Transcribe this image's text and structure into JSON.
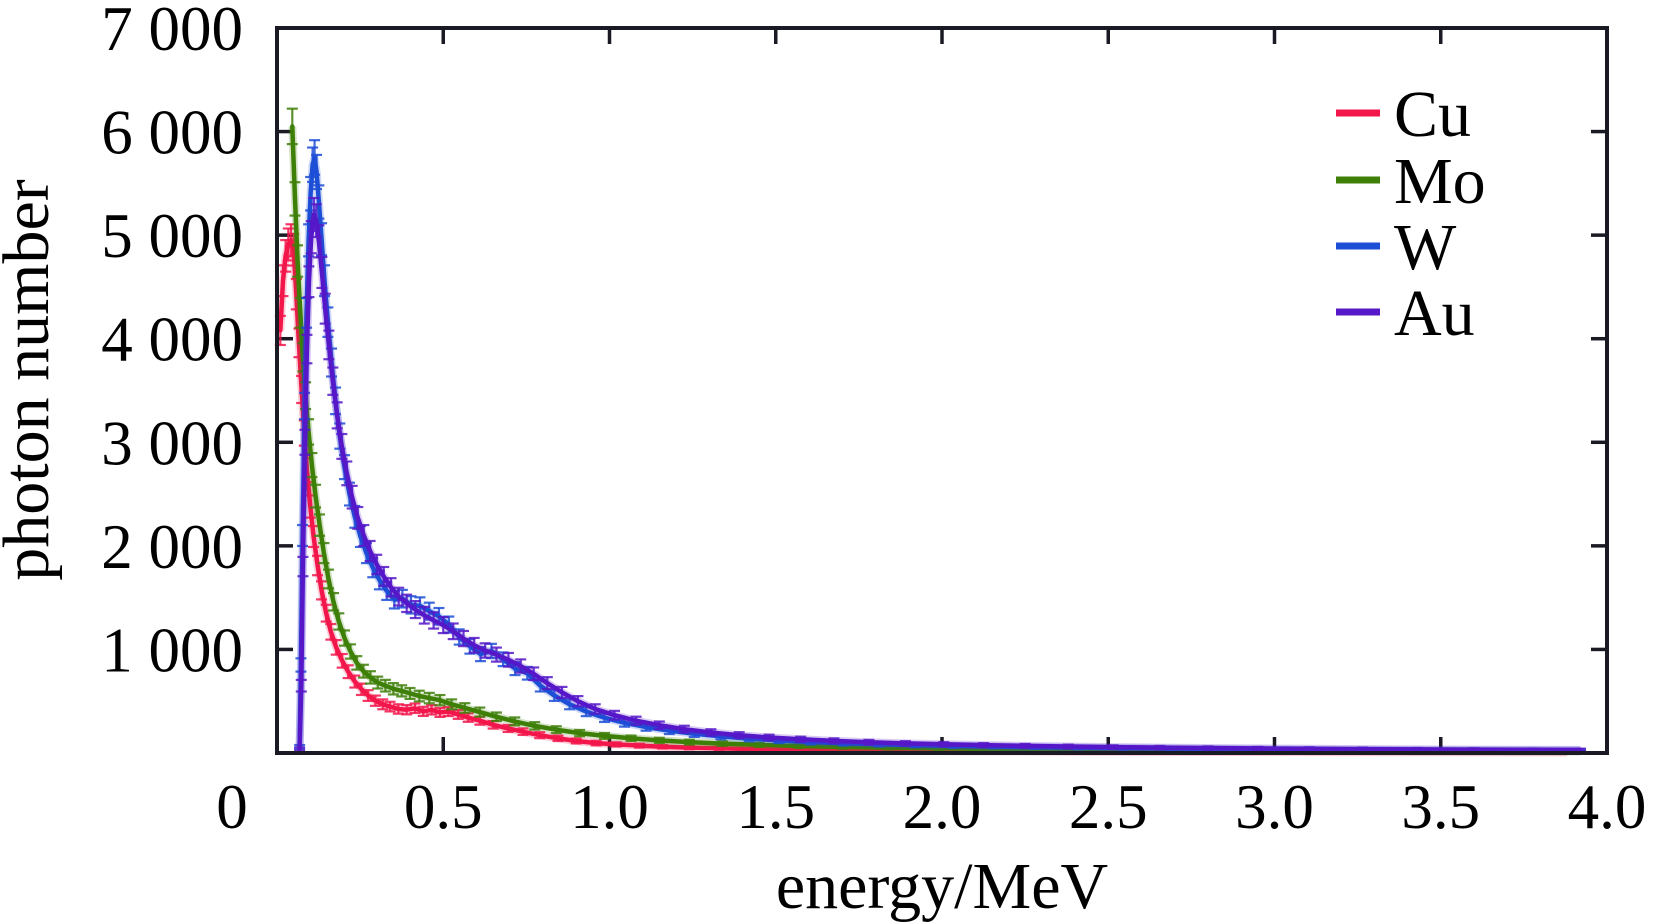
{
  "chart_data": {
    "type": "line",
    "title": "",
    "xlabel": "energy/MeV",
    "ylabel": "photon number",
    "xlim": [
      0,
      4.0
    ],
    "ylim": [
      0,
      7000
    ],
    "grid": false,
    "legend_position": "top-right",
    "frame": "full-box-with-mirrored-inward-ticks",
    "error_bar_factor": 2.2,
    "x_tick_values": [
      0,
      0.5,
      1.0,
      1.5,
      2.0,
      2.5,
      3.0,
      3.5,
      4.0
    ],
    "x_tick_labels": [
      "0",
      "0.5",
      "1.0",
      "1.5",
      "2.0",
      "2.5",
      "3.0",
      "3.5",
      "4.0"
    ],
    "y_tick_values": [
      1000,
      2000,
      3000,
      4000,
      5000,
      6000,
      7000
    ],
    "y_tick_labels": [
      "1 000",
      "2 000",
      "3 000",
      "4 000",
      "5 000",
      "6 000",
      "7 000"
    ],
    "colors": {
      "axis": "#1a1a24",
      "text": "#000000"
    },
    "series": [
      {
        "name": "Cu",
        "color": "#f2164b",
        "points": [
          [
            0.01,
            4080
          ],
          [
            0.018,
            4560
          ],
          [
            0.026,
            4800
          ],
          [
            0.034,
            4910
          ],
          [
            0.042,
            4950
          ],
          [
            0.05,
            4860
          ],
          [
            0.058,
            4430
          ],
          [
            0.066,
            3960
          ],
          [
            0.074,
            3510
          ],
          [
            0.082,
            3090
          ],
          [
            0.09,
            2730
          ],
          [
            0.1,
            2380
          ],
          [
            0.11,
            2090
          ],
          [
            0.122,
            1810
          ],
          [
            0.134,
            1570
          ],
          [
            0.148,
            1350
          ],
          [
            0.162,
            1170
          ],
          [
            0.178,
            1020
          ],
          [
            0.196,
            890
          ],
          [
            0.214,
            785
          ],
          [
            0.234,
            690
          ],
          [
            0.254,
            615
          ],
          [
            0.274,
            555
          ],
          [
            0.296,
            505
          ],
          [
            0.318,
            470
          ],
          [
            0.34,
            448
          ],
          [
            0.365,
            425
          ],
          [
            0.39,
            418
          ],
          [
            0.415,
            432
          ],
          [
            0.44,
            402
          ],
          [
            0.465,
            417
          ],
          [
            0.49,
            392
          ],
          [
            0.515,
            401
          ],
          [
            0.545,
            372
          ],
          [
            0.575,
            342
          ],
          [
            0.61,
            312
          ],
          [
            0.65,
            272
          ],
          [
            0.695,
            237
          ],
          [
            0.74,
            206
          ],
          [
            0.79,
            172
          ],
          [
            0.845,
            142
          ],
          [
            0.9,
            116
          ],
          [
            0.96,
            96
          ],
          [
            1.02,
            83
          ],
          [
            1.09,
            71
          ],
          [
            1.16,
            61
          ],
          [
            1.24,
            52
          ],
          [
            1.33,
            45
          ],
          [
            1.43,
            38
          ],
          [
            1.54,
            32
          ],
          [
            1.66,
            27
          ],
          [
            1.79,
            23
          ],
          [
            1.93,
            20
          ],
          [
            2.08,
            17
          ],
          [
            2.24,
            15
          ],
          [
            2.41,
            13
          ],
          [
            2.59,
            11
          ],
          [
            2.78,
            10
          ],
          [
            2.98,
            9
          ],
          [
            3.19,
            8
          ],
          [
            3.41,
            7
          ],
          [
            3.64,
            7
          ],
          [
            3.88,
            6
          ]
        ]
      },
      {
        "name": "Mo",
        "color": "#3e7f08",
        "points": [
          [
            0.046,
            6050
          ],
          [
            0.054,
            5350
          ],
          [
            0.062,
            4750
          ],
          [
            0.07,
            4250
          ],
          [
            0.078,
            3820
          ],
          [
            0.086,
            3450
          ],
          [
            0.095,
            3100
          ],
          [
            0.105,
            2780
          ],
          [
            0.116,
            2480
          ],
          [
            0.128,
            2200
          ],
          [
            0.141,
            1930
          ],
          [
            0.155,
            1680
          ],
          [
            0.17,
            1460
          ],
          [
            0.186,
            1270
          ],
          [
            0.203,
            1110
          ],
          [
            0.221,
            980
          ],
          [
            0.24,
            870
          ],
          [
            0.26,
            790
          ],
          [
            0.281,
            730
          ],
          [
            0.303,
            680
          ],
          [
            0.326,
            650
          ],
          [
            0.35,
            620
          ],
          [
            0.375,
            600
          ],
          [
            0.4,
            575
          ],
          [
            0.428,
            550
          ],
          [
            0.458,
            530
          ],
          [
            0.49,
            510
          ],
          [
            0.525,
            470
          ],
          [
            0.565,
            435
          ],
          [
            0.61,
            395
          ],
          [
            0.66,
            350
          ],
          [
            0.715,
            305
          ],
          [
            0.775,
            262
          ],
          [
            0.84,
            225
          ],
          [
            0.91,
            192
          ],
          [
            0.985,
            165
          ],
          [
            1.065,
            142
          ],
          [
            1.15,
            122
          ],
          [
            1.24,
            105
          ],
          [
            1.34,
            91
          ],
          [
            1.45,
            79
          ],
          [
            1.57,
            68
          ],
          [
            1.7,
            59
          ],
          [
            1.84,
            51
          ],
          [
            1.99,
            45
          ],
          [
            2.15,
            39
          ],
          [
            2.32,
            34
          ],
          [
            2.5,
            30
          ],
          [
            2.69,
            26
          ],
          [
            2.89,
            23
          ],
          [
            3.1,
            21
          ],
          [
            3.32,
            18
          ],
          [
            3.55,
            16
          ],
          [
            3.79,
            15
          ],
          [
            3.92,
            14
          ]
        ]
      },
      {
        "name": "W",
        "color": "#1d4fd6",
        "points": [
          [
            0.068,
            60
          ],
          [
            0.072,
            850
          ],
          [
            0.077,
            2100
          ],
          [
            0.083,
            3350
          ],
          [
            0.089,
            4250
          ],
          [
            0.095,
            4950
          ],
          [
            0.101,
            5400
          ],
          [
            0.107,
            5680
          ],
          [
            0.113,
            5750
          ],
          [
            0.119,
            5610
          ],
          [
            0.126,
            5320
          ],
          [
            0.134,
            4960
          ],
          [
            0.143,
            4560
          ],
          [
            0.153,
            4160
          ],
          [
            0.164,
            3770
          ],
          [
            0.176,
            3400
          ],
          [
            0.189,
            3060
          ],
          [
            0.203,
            2760
          ],
          [
            0.218,
            2500
          ],
          [
            0.234,
            2280
          ],
          [
            0.251,
            2090
          ],
          [
            0.269,
            1930
          ],
          [
            0.288,
            1790
          ],
          [
            0.308,
            1670
          ],
          [
            0.33,
            1565
          ],
          [
            0.353,
            1480
          ],
          [
            0.377,
            1490
          ],
          [
            0.403,
            1430
          ],
          [
            0.43,
            1420
          ],
          [
            0.458,
            1370
          ],
          [
            0.487,
            1320
          ],
          [
            0.517,
            1240
          ],
          [
            0.548,
            1120
          ],
          [
            0.58,
            1030
          ],
          [
            0.612,
            955
          ],
          [
            0.645,
            985
          ],
          [
            0.68,
            905
          ],
          [
            0.716,
            815
          ],
          [
            0.753,
            770
          ],
          [
            0.792,
            650
          ],
          [
            0.834,
            555
          ],
          [
            0.88,
            470
          ],
          [
            0.93,
            400
          ],
          [
            0.985,
            340
          ],
          [
            1.045,
            292
          ],
          [
            1.11,
            250
          ],
          [
            1.18,
            215
          ],
          [
            1.255,
            185
          ],
          [
            1.335,
            160
          ],
          [
            1.42,
            139
          ],
          [
            1.51,
            121
          ],
          [
            1.605,
            106
          ],
          [
            1.705,
            94
          ],
          [
            1.81,
            84
          ],
          [
            1.92,
            76
          ],
          [
            2.035,
            69
          ],
          [
            2.155,
            63
          ],
          [
            2.28,
            57
          ],
          [
            2.41,
            52
          ],
          [
            2.545,
            47
          ],
          [
            2.685,
            43
          ],
          [
            2.83,
            39
          ],
          [
            2.98,
            35
          ],
          [
            3.135,
            32
          ],
          [
            3.295,
            30
          ],
          [
            3.46,
            28
          ],
          [
            3.63,
            27
          ],
          [
            3.805,
            26
          ],
          [
            3.92,
            25
          ]
        ]
      },
      {
        "name": "Au",
        "color": "#5617c8",
        "points": [
          [
            0.068,
            40
          ],
          [
            0.073,
            650
          ],
          [
            0.078,
            1800
          ],
          [
            0.084,
            3000
          ],
          [
            0.09,
            3900
          ],
          [
            0.096,
            4550
          ],
          [
            0.103,
            4980
          ],
          [
            0.111,
            5200
          ],
          [
            0.118,
            5140
          ],
          [
            0.126,
            4940
          ],
          [
            0.135,
            4640
          ],
          [
            0.145,
            4290
          ],
          [
            0.156,
            3940
          ],
          [
            0.168,
            3590
          ],
          [
            0.181,
            3260
          ],
          [
            0.195,
            2960
          ],
          [
            0.21,
            2700
          ],
          [
            0.226,
            2470
          ],
          [
            0.243,
            2270
          ],
          [
            0.261,
            2100
          ],
          [
            0.28,
            1950
          ],
          [
            0.3,
            1820
          ],
          [
            0.321,
            1705
          ],
          [
            0.343,
            1600
          ],
          [
            0.366,
            1510
          ],
          [
            0.39,
            1445
          ],
          [
            0.416,
            1385
          ],
          [
            0.443,
            1330
          ],
          [
            0.471,
            1280
          ],
          [
            0.5,
            1235
          ],
          [
            0.53,
            1175
          ],
          [
            0.561,
            1105
          ],
          [
            0.593,
            1040
          ],
          [
            0.626,
            990
          ],
          [
            0.66,
            950
          ],
          [
            0.696,
            900
          ],
          [
            0.733,
            840
          ],
          [
            0.772,
            765
          ],
          [
            0.813,
            675
          ],
          [
            0.857,
            585
          ],
          [
            0.905,
            500
          ],
          [
            0.957,
            425
          ],
          [
            1.015,
            365
          ],
          [
            1.08,
            312
          ],
          [
            1.15,
            268
          ],
          [
            1.225,
            230
          ],
          [
            1.305,
            198
          ],
          [
            1.39,
            172
          ],
          [
            1.48,
            150
          ],
          [
            1.575,
            132
          ],
          [
            1.675,
            117
          ],
          [
            1.78,
            104
          ],
          [
            1.89,
            93
          ],
          [
            2.005,
            84
          ],
          [
            2.125,
            76
          ],
          [
            2.25,
            69
          ],
          [
            2.38,
            63
          ],
          [
            2.515,
            57
          ],
          [
            2.655,
            52
          ],
          [
            2.8,
            48
          ],
          [
            2.95,
            44
          ],
          [
            3.105,
            41
          ],
          [
            3.265,
            38
          ],
          [
            3.43,
            35
          ],
          [
            3.6,
            33
          ],
          [
            3.775,
            31
          ],
          [
            3.92,
            30
          ]
        ]
      }
    ]
  }
}
